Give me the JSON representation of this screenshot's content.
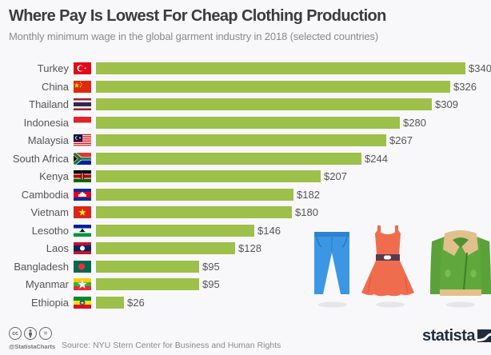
{
  "header": {
    "title": "Where Pay Is Lowest For Cheap Clothing Production",
    "subtitle": "Monthly minimum wage in the global garment industry in 2018 (selected countries)"
  },
  "rows": [
    {
      "country": "Turkey",
      "flag": "flag-turkey",
      "value": 340,
      "value_label": "$340"
    },
    {
      "country": "China",
      "flag": "flag-china",
      "value": 326,
      "value_label": "$326"
    },
    {
      "country": "Thailand",
      "flag": "flag-thailand",
      "value": 309,
      "value_label": "$309"
    },
    {
      "country": "Indonesia",
      "flag": "flag-indonesia",
      "value": 280,
      "value_label": "$280"
    },
    {
      "country": "Malaysia",
      "flag": "flag-malaysia",
      "value": 267,
      "value_label": "$267"
    },
    {
      "country": "South Africa",
      "flag": "flag-south-africa",
      "value": 244,
      "value_label": "$244"
    },
    {
      "country": "Kenya",
      "flag": "flag-kenya",
      "value": 207,
      "value_label": "$207"
    },
    {
      "country": "Cambodia",
      "flag": "flag-cambodia",
      "value": 182,
      "value_label": "$182"
    },
    {
      "country": "Vietnam",
      "flag": "flag-vietnam",
      "value": 180,
      "value_label": "$180"
    },
    {
      "country": "Lesotho",
      "flag": "flag-lesotho",
      "value": 146,
      "value_label": "$146"
    },
    {
      "country": "Laos",
      "flag": "flag-laos",
      "value": 128,
      "value_label": "$128"
    },
    {
      "country": "Bangladesh",
      "flag": "flag-bangladesh",
      "value": 95,
      "value_label": "$95"
    },
    {
      "country": "Myanmar",
      "flag": "flag-myanmar",
      "value": 95,
      "value_label": "$95"
    },
    {
      "country": "Ethiopia",
      "flag": "flag-ethiopia",
      "value": 26,
      "value_label": "$26"
    }
  ],
  "colors": {
    "bar": "#9cc04a",
    "title": "#3b3b3d",
    "subtitle": "#8a8a8c",
    "label": "#555555",
    "background": "#f8f8fa"
  },
  "illustrations": [
    "jeans-icon",
    "dress-icon",
    "jacket-icon"
  ],
  "footer": {
    "license_icons": [
      "cc",
      "by",
      "nd"
    ],
    "cc_label": "cc",
    "nd_label": "=",
    "handle": "@StatistaCharts",
    "source": "Source: NYU Stern Center for Business and Human Rights",
    "logo": "statista"
  },
  "chart_data": {
    "type": "bar",
    "orientation": "horizontal",
    "title": "Where Pay Is Lowest For Cheap Clothing Production",
    "subtitle": "Monthly minimum wage in the global garment industry in 2018 (selected countries)",
    "categories": [
      "Turkey",
      "China",
      "Thailand",
      "Indonesia",
      "Malaysia",
      "South Africa",
      "Kenya",
      "Cambodia",
      "Vietnam",
      "Lesotho",
      "Laos",
      "Bangladesh",
      "Myanmar",
      "Ethiopia"
    ],
    "values": [
      340,
      326,
      309,
      280,
      267,
      244,
      207,
      182,
      180,
      146,
      128,
      95,
      95,
      26
    ],
    "value_labels": [
      "$340",
      "$326",
      "$309",
      "$280",
      "$267",
      "$244",
      "$207",
      "$182",
      "$180",
      "$146",
      "$128",
      "$95",
      "$95",
      "$26"
    ],
    "xlabel": "",
    "ylabel": "",
    "unit": "USD per month",
    "xlim": [
      0,
      340
    ],
    "grid": false,
    "legend": null,
    "source": "NYU Stern Center for Business and Human Rights"
  }
}
